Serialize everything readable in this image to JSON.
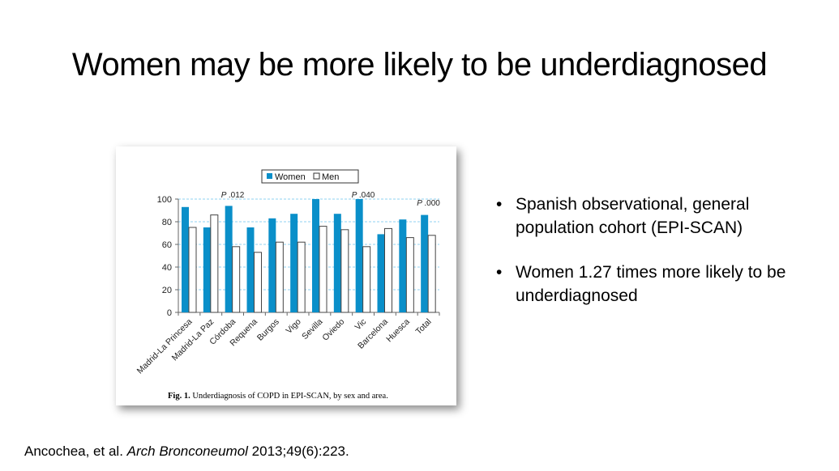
{
  "slide": {
    "title": "Women may be more likely to be underdiagnosed",
    "bullets": [
      "Spanish observational, general population cohort (EPI-SCAN)",
      "Women 1.27 times more likely to be underdiagnosed"
    ],
    "citation": {
      "authors": "Ancochea, et al. ",
      "journal": "Arch Bronconeumol",
      "ref": " 2013;49(6):223."
    }
  },
  "figure": {
    "caption_label": "Fig. 1.",
    "caption_text": " Underdiagnosis of COPD in EPI-SCAN, by sex and area."
  },
  "chart_data": {
    "type": "bar",
    "categories": [
      "Madrid-La Princesa",
      "Madrid-La Paz",
      "Córdoba",
      "Requena",
      "Burgos",
      "Vigo",
      "Sevilla",
      "Oviedo",
      "Vic",
      "Barcelona",
      "Huesca",
      "Total"
    ],
    "series": [
      {
        "name": "Women",
        "color": "#0a8fc9",
        "values": [
          93,
          75,
          94,
          75,
          83,
          87,
          100,
          87,
          100,
          69,
          82,
          86
        ]
      },
      {
        "name": "Men",
        "color": "#ffffff",
        "values": [
          75,
          86,
          58,
          53,
          62,
          62,
          76,
          73,
          58,
          74,
          66,
          68
        ]
      }
    ],
    "ylim": [
      0,
      100
    ],
    "yticks": [
      0,
      20,
      40,
      60,
      80,
      100
    ],
    "grid": true,
    "legend": "top-center",
    "annotations": [
      {
        "category": "Córdoba",
        "text": "P .012"
      },
      {
        "category": "Vic",
        "text": "P .040"
      },
      {
        "category": "Total",
        "text": "P .000"
      }
    ]
  }
}
